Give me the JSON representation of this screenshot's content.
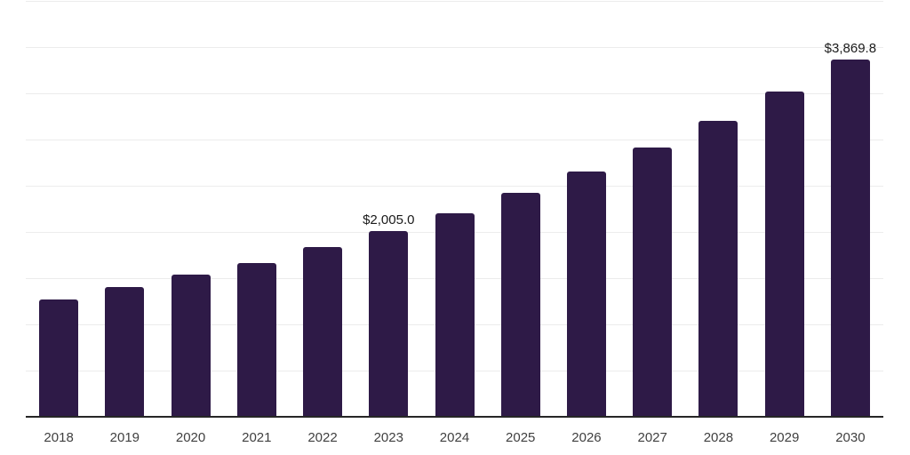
{
  "chart_data": {
    "type": "bar",
    "categories": [
      "2018",
      "2019",
      "2020",
      "2021",
      "2022",
      "2023",
      "2024",
      "2025",
      "2026",
      "2027",
      "2028",
      "2029",
      "2030"
    ],
    "values": [
      1274.0,
      1405.0,
      1534.0,
      1668.0,
      1832.0,
      2005.0,
      2202.0,
      2419.0,
      2658.0,
      2910.0,
      3203.0,
      3520.0,
      3869.8
    ],
    "title": "",
    "xlabel": "",
    "ylabel": "",
    "ylim": [
      0,
      4500
    ],
    "gridline_step": 500,
    "grid": "horizontal",
    "legend": "none",
    "y_axis_tick_labels_visible": false,
    "data_labels": [
      {
        "category": "2023",
        "text": "$2,005.0"
      },
      {
        "category": "2030",
        "text": "$3,869.8"
      }
    ]
  },
  "colors": {
    "bar": "#2e1a47",
    "gridline": "#ececec",
    "axis_line": "#262626",
    "data_label_text": "#1a1a1a",
    "tick_label_text": "#404040",
    "background": "#ffffff"
  }
}
